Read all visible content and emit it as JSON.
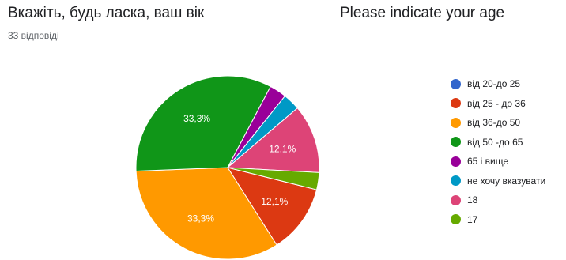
{
  "header": {
    "title_uk": "Вкажіть, будь ласка, ваш вік",
    "title_en": "Please indicate your age",
    "responses": "33 відповіді"
  },
  "chart_data": {
    "type": "pie",
    "categories": [
      "від 20-до 25",
      "від 25 - до 36",
      "від 36-до 50",
      "від 50 -до 65",
      "65 і вище",
      "не хочу вказувати",
      "18",
      "17"
    ],
    "values": [
      0,
      12.1,
      33.3,
      33.3,
      3.0,
      3.0,
      12.1,
      3.0
    ],
    "data_labels": [
      "",
      "12,1%",
      "33,3%",
      "33,3%",
      "",
      "",
      "12,1%",
      ""
    ],
    "colors": [
      "#3366cc",
      "#dc3912",
      "#ff9900",
      "#109618",
      "#990099",
      "#0099c6",
      "#dd4477",
      "#66aa00"
    ],
    "legend_position": "right"
  }
}
